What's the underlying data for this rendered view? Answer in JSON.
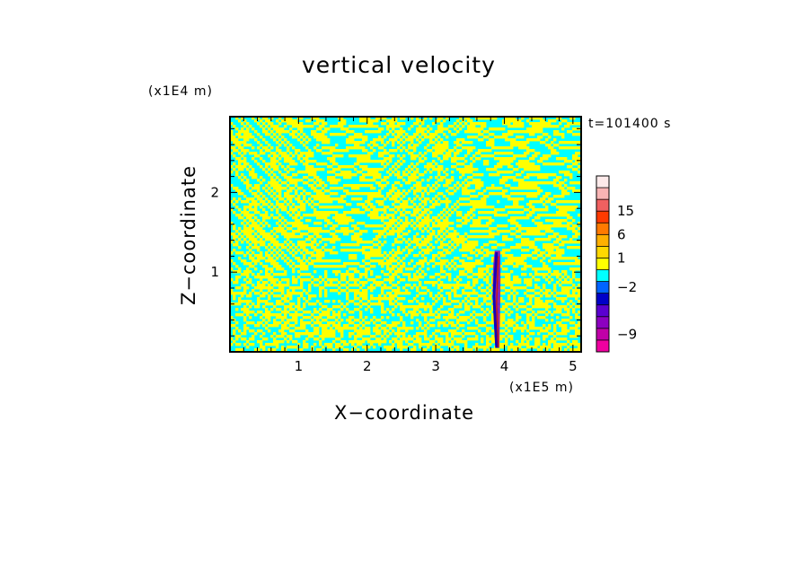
{
  "chart_data": {
    "type": "heatmap",
    "title": "vertical velocity",
    "xlabel": "X−coordinate",
    "ylabel": "Z−coordinate",
    "x_unit": "(x1E5 m)",
    "y_unit": "(x1E4 m)",
    "time_label": "t=101400 s",
    "xlim": [
      0,
      5.12
    ],
    "ylim": [
      0,
      2.95
    ],
    "x_ticks": [
      1,
      2,
      3,
      4,
      5
    ],
    "y_ticks": [
      1,
      2
    ],
    "grid": false,
    "legend_placement": "right",
    "field_colors": {
      "updraft": "#ffff00",
      "downdraft": "#00ffff"
    },
    "colorbar": {
      "levels": [
        {
          "color": "#f000a0"
        },
        {
          "color": "#c000a8"
        },
        {
          "color": "#8c00c0"
        },
        {
          "color": "#5a00d0"
        },
        {
          "color": "#0000c8"
        },
        {
          "color": "#0064ff"
        },
        {
          "color": "#00ffff"
        },
        {
          "color": "#ffff00"
        },
        {
          "color": "#ffd800"
        },
        {
          "color": "#ffb000"
        },
        {
          "color": "#ff7a00"
        },
        {
          "color": "#ff3a00"
        },
        {
          "color": "#f06060"
        },
        {
          "color": "#f8b4b4"
        },
        {
          "color": "#fdeaea"
        }
      ],
      "tick_labels": [
        {
          "label": "15",
          "level": 12
        },
        {
          "label": "6",
          "level": 10
        },
        {
          "label": "1",
          "level": 8
        },
        {
          "label": "−2",
          "level": 5.5
        },
        {
          "label": "−9",
          "level": 1.5
        }
      ]
    },
    "anomaly_colors": [
      "#1a00b0",
      "#c01818",
      "#8c00c0"
    ]
  }
}
